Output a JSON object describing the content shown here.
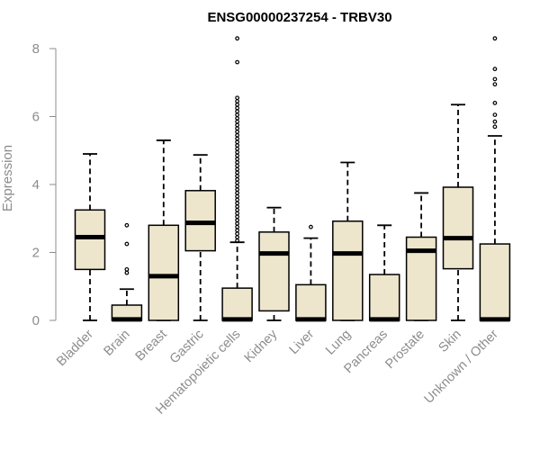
{
  "chart_data": {
    "type": "boxplot",
    "title": "ENSG00000237254 - TRBV30",
    "ylabel": "Expression",
    "xlabel": "",
    "ylim": [
      0,
      8.3
    ],
    "yticks": [
      0,
      2,
      4,
      6,
      8
    ],
    "box_fill": "#ede6cd",
    "categories": [
      "Bladder",
      "Brain",
      "Breast",
      "Gastric",
      "Hematopoietic cells",
      "Kidney",
      "Liver",
      "Lung",
      "Pancreas",
      "Prostate",
      "Skin",
      "Unknown / Other"
    ],
    "boxes": [
      {
        "min": 0,
        "q1": 1.5,
        "median": 2.45,
        "q3": 3.25,
        "max": 4.9,
        "outliers": []
      },
      {
        "min": 0,
        "q1": 0,
        "median": 0.03,
        "q3": 0.45,
        "max": 0.92,
        "outliers": [
          1.4,
          1.5,
          2.25,
          2.8
        ]
      },
      {
        "min": 0,
        "q1": 0,
        "median": 1.3,
        "q3": 2.8,
        "max": 5.3,
        "outliers": []
      },
      {
        "min": 0,
        "q1": 2.05,
        "median": 2.87,
        "q3": 3.82,
        "max": 4.87,
        "outliers": []
      },
      {
        "min": 0,
        "q1": 0,
        "median": 0.03,
        "q3": 0.95,
        "max": 2.3,
        "outliers": [
          2.35,
          2.45,
          2.55,
          2.65,
          2.75,
          2.85,
          2.95,
          3.05,
          3.15,
          3.25,
          3.35,
          3.45,
          3.55,
          3.65,
          3.75,
          3.85,
          3.95,
          4.05,
          4.15,
          4.25,
          4.35,
          4.45,
          4.55,
          4.65,
          4.75,
          4.85,
          4.95,
          5.05,
          5.15,
          5.25,
          5.35,
          5.45,
          5.55,
          5.65,
          5.75,
          5.85,
          5.95,
          6.05,
          6.15,
          6.25,
          6.35,
          6.45,
          6.55,
          7.6,
          8.3
        ]
      },
      {
        "min": 0,
        "q1": 0.28,
        "median": 1.97,
        "q3": 2.6,
        "max": 3.32,
        "outliers": []
      },
      {
        "min": 0,
        "q1": 0,
        "median": 0.03,
        "q3": 1.05,
        "max": 2.42,
        "outliers": [
          2.75
        ]
      },
      {
        "min": 0,
        "q1": 0,
        "median": 1.97,
        "q3": 2.92,
        "max": 4.65,
        "outliers": []
      },
      {
        "min": 0,
        "q1": 0,
        "median": 0.03,
        "q3": 1.35,
        "max": 2.8,
        "outliers": []
      },
      {
        "min": 0,
        "q1": 0,
        "median": 2.05,
        "q3": 2.45,
        "max": 3.75,
        "outliers": []
      },
      {
        "min": 0,
        "q1": 1.52,
        "median": 2.42,
        "q3": 3.92,
        "max": 6.35,
        "outliers": []
      },
      {
        "min": 0,
        "q1": 0,
        "median": 0.03,
        "q3": 2.25,
        "max": 5.43,
        "outliers": [
          5.7,
          5.85,
          6.05,
          6.4,
          6.95,
          7.1,
          7.4,
          8.3
        ]
      }
    ]
  }
}
